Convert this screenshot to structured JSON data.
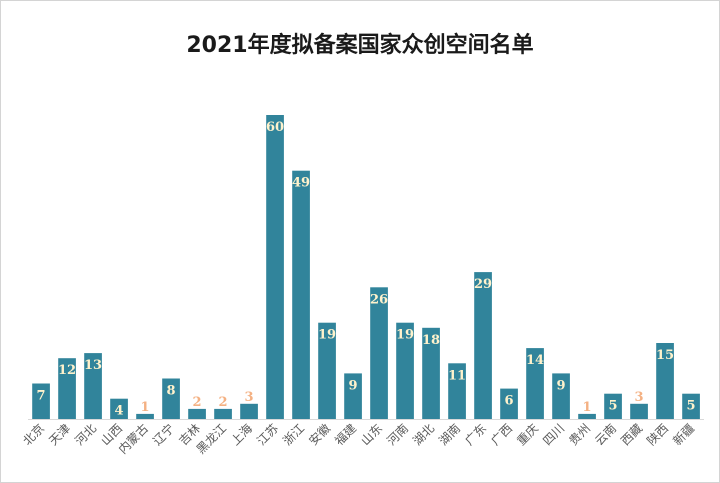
{
  "chart_data": {
    "type": "bar",
    "title": "2021年度拟备案国家众创空间名单",
    "xlabel": "",
    "ylabel": "",
    "ylim": [
      0,
      60
    ],
    "grid": false,
    "legend": "none",
    "categories": [
      "北京",
      "天津",
      "河北",
      "山西",
      "内蒙古",
      "辽宁",
      "吉林",
      "黑龙江",
      "上海",
      "江苏",
      "浙江",
      "安徽",
      "福建",
      "山东",
      "河南",
      "湖北",
      "湖南",
      "广东",
      "广西",
      "重庆",
      "四川",
      "贵州",
      "云南",
      "西藏",
      "陕西",
      "新疆"
    ],
    "values": [
      7,
      12,
      13,
      4,
      1,
      8,
      2,
      2,
      3,
      60,
      49,
      19,
      9,
      26,
      19,
      18,
      11,
      29,
      6,
      14,
      9,
      1,
      5,
      3,
      15,
      5
    ],
    "colors": {
      "bar": "#31849B",
      "label_inside": "#FFF2CC",
      "label_outside": "#F4B183",
      "axis": "#d9d9d9",
      "category_text": "#595959"
    }
  }
}
